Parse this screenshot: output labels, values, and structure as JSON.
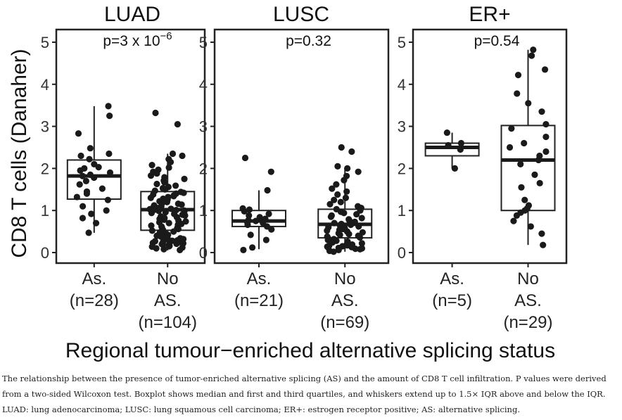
{
  "figure": {
    "ylabel": "CD8 T cells (Danaher)",
    "xlabel": "Regional tumour−enriched alternative splicing status"
  },
  "caption": "The relationship between the presence of tumor-enriched alternative splicing (AS) and the amount of CD8 T cell infiltration. P values were derived from a two-sided Wilcoxon test. Boxplot shows median and first and third quartiles, and whiskers extend up to 1.5× IQR above and below the IQR. LUAD: lung adenocarcinoma; LUSC: lung squamous cell carcinoma; ER+: estrogen receptor positive; AS: alternative splicing.",
  "chart_data": [
    {
      "type": "box",
      "title": "LUAD",
      "pvalue": "p=3 x 10",
      "pvalue_exp": "−6",
      "ylim": [
        0,
        5
      ],
      "yticks": [
        "0",
        "1",
        "2",
        "3",
        "4",
        "5"
      ],
      "categories": [
        {
          "label_lines": [
            "As.",
            "(n=28)"
          ],
          "n": 28,
          "box": {
            "q1": 1.27,
            "median": 1.82,
            "q3": 2.2,
            "whisker_low": 0.47,
            "whisker_high": 3.48
          },
          "points": [
            3.48,
            3.25,
            2.83,
            2.48,
            2.35,
            2.3,
            2.22,
            2.1,
            2.03,
            2.0,
            1.95,
            1.9,
            1.85,
            1.82,
            1.78,
            1.7,
            1.62,
            1.52,
            1.45,
            1.4,
            1.32,
            1.25,
            1.1,
            1.0,
            0.92,
            0.82,
            0.7,
            0.47
          ]
        },
        {
          "label_lines": [
            "No",
            "AS.",
            "(n=104)"
          ],
          "n": 104,
          "box": {
            "q1": 0.53,
            "median": 1.02,
            "q3": 1.45,
            "whisker_low": 0.05,
            "whisker_high": 2.35
          },
          "points": [
            3.32,
            3.05,
            2.35,
            2.3,
            2.22,
            2.15,
            2.08,
            2.02,
            1.97,
            1.92,
            1.88,
            1.83,
            1.79,
            1.75,
            1.71,
            1.67,
            1.63,
            1.59,
            1.56,
            1.53,
            1.5,
            1.47,
            1.44,
            1.42,
            1.4,
            1.38,
            1.36,
            1.34,
            1.32,
            1.3,
            1.28,
            1.26,
            1.24,
            1.22,
            1.2,
            1.18,
            1.16,
            1.14,
            1.12,
            1.1,
            1.08,
            1.06,
            1.05,
            1.04,
            1.03,
            1.02,
            1.01,
            1.0,
            0.99,
            0.98,
            0.96,
            0.94,
            0.92,
            0.9,
            0.88,
            0.86,
            0.84,
            0.82,
            0.8,
            0.78,
            0.76,
            0.74,
            0.72,
            0.7,
            0.68,
            0.66,
            0.64,
            0.62,
            0.6,
            0.58,
            0.56,
            0.54,
            0.52,
            0.5,
            0.48,
            0.46,
            0.44,
            0.42,
            0.4,
            0.38,
            0.36,
            0.34,
            0.32,
            0.3,
            0.29,
            0.28,
            0.27,
            0.26,
            0.25,
            0.24,
            0.23,
            0.22,
            0.21,
            0.2,
            0.19,
            0.18,
            0.17,
            0.16,
            0.15,
            0.14,
            0.12,
            0.1,
            0.08,
            0.06
          ]
        }
      ]
    },
    {
      "type": "box",
      "title": "LUSC",
      "pvalue": "p=0.32",
      "pvalue_exp": "",
      "ylim": [
        0,
        5
      ],
      "yticks": [
        "0",
        "1",
        "2",
        "3",
        "4",
        "5"
      ],
      "categories": [
        {
          "label_lines": [
            "As.",
            "(n=21)"
          ],
          "n": 21,
          "box": {
            "q1": 0.62,
            "median": 0.75,
            "q3": 1.0,
            "whisker_low": 0.08,
            "whisker_high": 1.48
          },
          "points": [
            2.25,
            1.92,
            1.48,
            1.05,
            1.02,
            0.98,
            0.92,
            0.88,
            0.84,
            0.8,
            0.77,
            0.75,
            0.72,
            0.7,
            0.66,
            0.62,
            0.55,
            0.42,
            0.3,
            0.12,
            0.06
          ]
        },
        {
          "label_lines": [
            "No",
            "AS.",
            "(n=69)"
          ],
          "n": 69,
          "box": {
            "q1": 0.35,
            "median": 0.67,
            "q3": 1.03,
            "whisker_low": 0.02,
            "whisker_high": 2.0
          },
          "points": [
            2.5,
            2.4,
            2.05,
            2.0,
            1.92,
            1.82,
            1.72,
            1.62,
            1.52,
            1.45,
            1.38,
            1.3,
            1.25,
            1.2,
            1.15,
            1.1,
            1.06,
            1.03,
            1.0,
            0.97,
            0.94,
            0.91,
            0.88,
            0.85,
            0.82,
            0.79,
            0.76,
            0.73,
            0.7,
            0.68,
            0.66,
            0.64,
            0.62,
            0.6,
            0.58,
            0.56,
            0.54,
            0.52,
            0.5,
            0.48,
            0.46,
            0.44,
            0.42,
            0.4,
            0.38,
            0.36,
            0.34,
            0.32,
            0.3,
            0.28,
            0.26,
            0.24,
            0.22,
            0.2,
            0.19,
            0.18,
            0.17,
            0.16,
            0.15,
            0.14,
            0.13,
            0.12,
            0.11,
            0.1,
            0.09,
            0.08,
            0.06,
            0.04,
            0.02
          ]
        }
      ]
    },
    {
      "type": "box",
      "title": "ER+",
      "pvalue": "p=0.54",
      "pvalue_exp": "",
      "ylim": [
        0,
        5
      ],
      "yticks": [
        "0",
        "1",
        "2",
        "3",
        "4",
        "5"
      ],
      "categories": [
        {
          "label_lines": [
            "As.",
            "(n=5)"
          ],
          "n": 5,
          "box": {
            "q1": 2.3,
            "median": 2.5,
            "q3": 2.6,
            "whisker_low": 2.0,
            "whisker_high": 2.85
          },
          "points": [
            2.85,
            2.6,
            2.55,
            2.45,
            2.0
          ]
        },
        {
          "label_lines": [
            "No",
            "AS.",
            "(n=29)"
          ],
          "n": 29,
          "box": {
            "q1": 1.0,
            "median": 2.2,
            "q3": 3.02,
            "whisker_low": 0.18,
            "whisker_high": 4.82
          },
          "points": [
            4.82,
            4.68,
            4.35,
            4.22,
            3.78,
            3.55,
            3.35,
            3.05,
            2.95,
            2.75,
            2.6,
            2.5,
            2.4,
            2.3,
            2.2,
            2.1,
            1.85,
            1.65,
            1.55,
            1.25,
            1.12,
            1.05,
            1.0,
            0.95,
            0.88,
            0.75,
            0.62,
            0.45,
            0.18
          ]
        }
      ]
    }
  ]
}
